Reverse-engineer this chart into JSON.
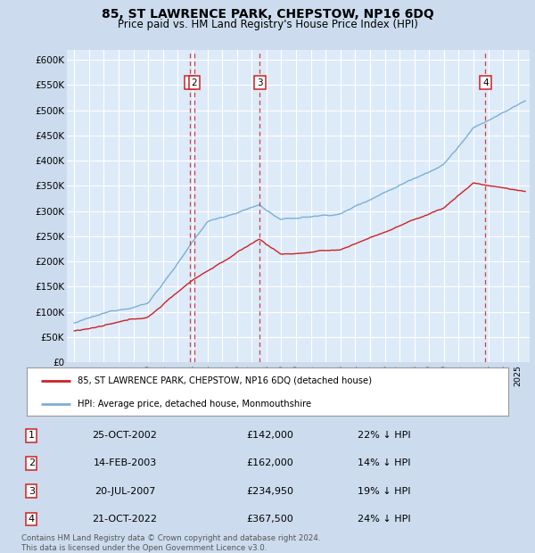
{
  "title": "85, ST LAWRENCE PARK, CHEPSTOW, NP16 6DQ",
  "subtitle": "Price paid vs. HM Land Registry's House Price Index (HPI)",
  "ylabel_ticks": [
    "£0",
    "£50K",
    "£100K",
    "£150K",
    "£200K",
    "£250K",
    "£300K",
    "£350K",
    "£400K",
    "£450K",
    "£500K",
    "£550K",
    "£600K"
  ],
  "ylim": [
    0,
    620000
  ],
  "xlim_start": 1994.5,
  "xlim_end": 2025.8,
  "hpi_color": "#7ab0d4",
  "price_color": "#cc2222",
  "bg_color": "#ccdcee",
  "plot_bg": "#ddeaf8",
  "grid_color": "#ffffff",
  "transactions": [
    {
      "num": 1,
      "date_num": 2002.82,
      "price": 142000,
      "date_str": "25-OCT-2002",
      "pct": "22%"
    },
    {
      "num": 2,
      "date_num": 2003.12,
      "price": 162000,
      "date_str": "14-FEB-2003",
      "pct": "14%"
    },
    {
      "num": 3,
      "date_num": 2007.55,
      "price": 234950,
      "date_str": "20-JUL-2007",
      "pct": "19%"
    },
    {
      "num": 4,
      "date_num": 2022.81,
      "price": 367500,
      "date_str": "21-OCT-2022",
      "pct": "24%"
    }
  ],
  "legend_label_price": "85, ST LAWRENCE PARK, CHEPSTOW, NP16 6DQ (detached house)",
  "legend_label_hpi": "HPI: Average price, detached house, Monmouthshire",
  "footnote": "Contains HM Land Registry data © Crown copyright and database right 2024.\nThis data is licensed under the Open Government Licence v3.0.",
  "ytick_vals": [
    0,
    50000,
    100000,
    150000,
    200000,
    250000,
    300000,
    350000,
    400000,
    450000,
    500000,
    550000,
    600000
  ]
}
